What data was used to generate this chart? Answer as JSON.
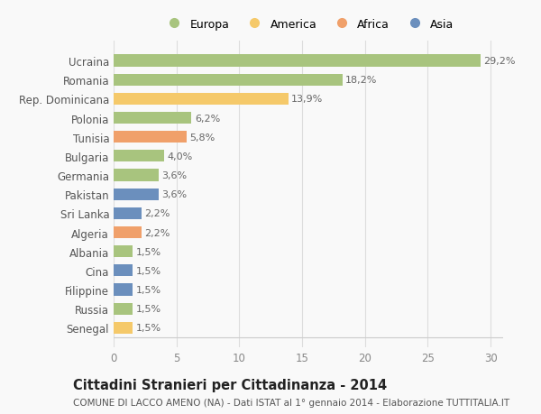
{
  "categories": [
    "Ucraina",
    "Romania",
    "Rep. Dominicana",
    "Polonia",
    "Tunisia",
    "Bulgaria",
    "Germania",
    "Pakistan",
    "Sri Lanka",
    "Algeria",
    "Albania",
    "Cina",
    "Filippine",
    "Russia",
    "Senegal"
  ],
  "values": [
    29.2,
    18.2,
    13.9,
    6.2,
    5.8,
    4.0,
    3.6,
    3.6,
    2.2,
    2.2,
    1.5,
    1.5,
    1.5,
    1.5,
    1.5
  ],
  "labels": [
    "29,2%",
    "18,2%",
    "13,9%",
    "6,2%",
    "5,8%",
    "4,0%",
    "3,6%",
    "3,6%",
    "2,2%",
    "2,2%",
    "1,5%",
    "1,5%",
    "1,5%",
    "1,5%",
    "1,5%"
  ],
  "bar_colors": [
    "#a8c47e",
    "#a8c47e",
    "#f5c96a",
    "#a8c47e",
    "#f0a06a",
    "#a8c47e",
    "#a8c47e",
    "#6b8fbd",
    "#6b8fbd",
    "#f0a06a",
    "#a8c47e",
    "#6b8fbd",
    "#6b8fbd",
    "#a8c47e",
    "#f5c96a"
  ],
  "legend_labels": [
    "Europa",
    "America",
    "Africa",
    "Asia"
  ],
  "legend_colors": [
    "#a8c47e",
    "#f5c96a",
    "#f0a06a",
    "#6b8fbd"
  ],
  "title": "Cittadini Stranieri per Cittadinanza - 2014",
  "subtitle": "COMUNE DI LACCO AMENO (NA) - Dati ISTAT al 1° gennaio 2014 - Elaborazione TUTTITALIA.IT",
  "xlim": [
    0,
    31
  ],
  "xticks": [
    0,
    5,
    10,
    15,
    20,
    25,
    30
  ],
  "background_color": "#f9f9f9",
  "grid_color": "#dddddd",
  "bar_height": 0.62,
  "title_fontsize": 10.5,
  "subtitle_fontsize": 7.5,
  "label_fontsize": 8,
  "tick_fontsize": 8.5,
  "legend_fontsize": 9
}
